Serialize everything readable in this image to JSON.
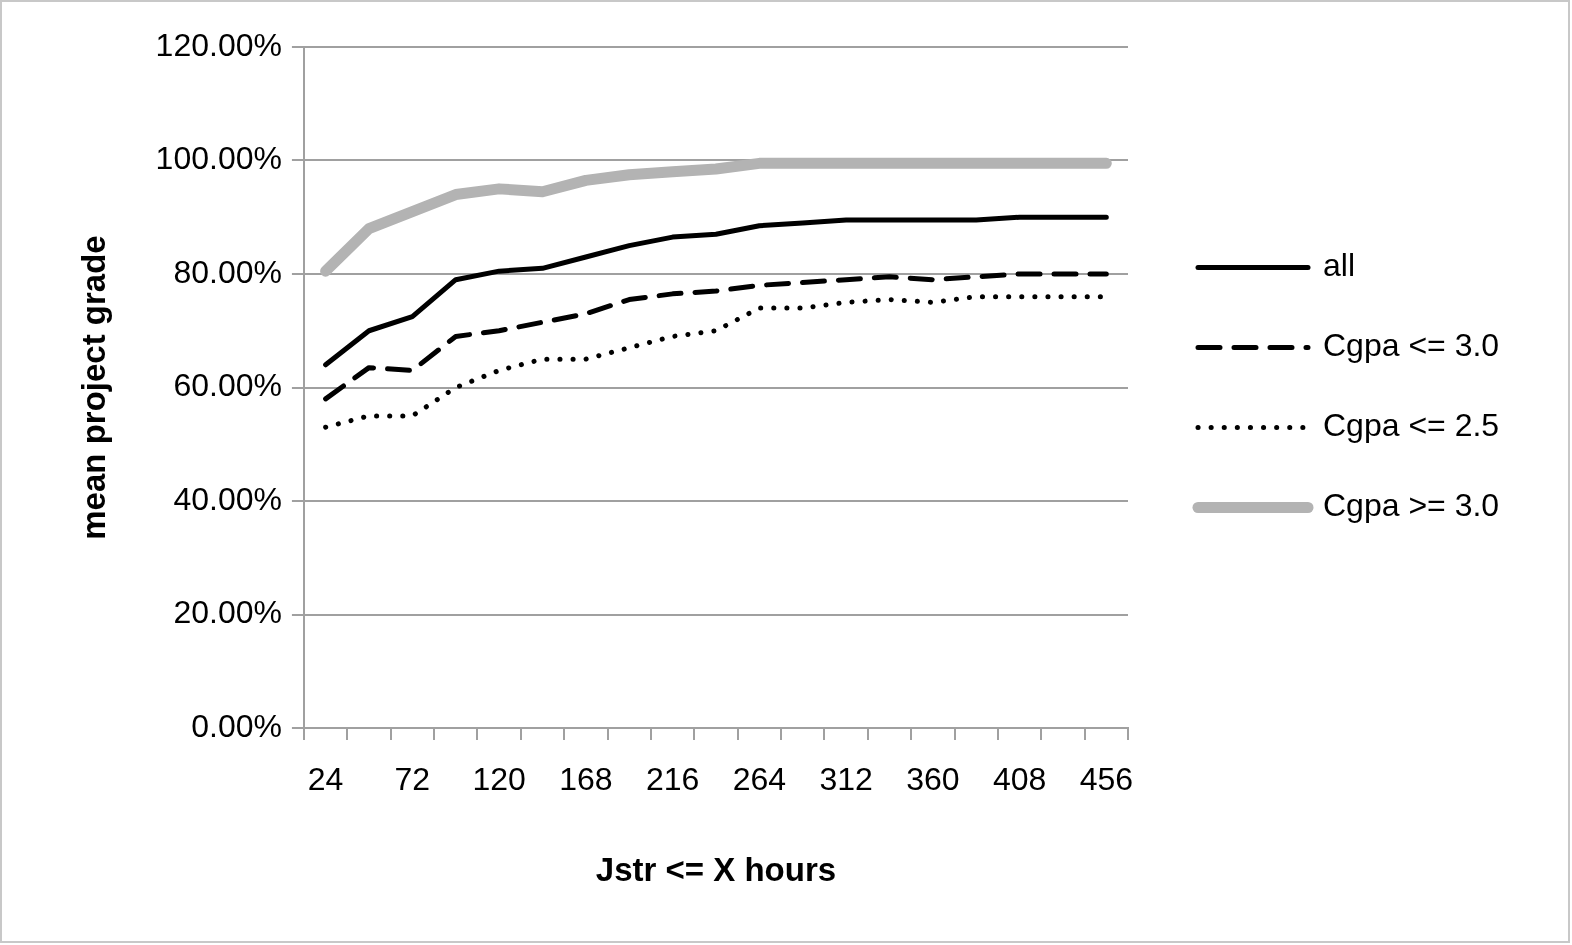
{
  "chart_data": {
    "type": "line",
    "xlabel": "Jstr <= X hours",
    "ylabel": "mean project grade",
    "categories": [
      "24",
      null,
      "72",
      null,
      "120",
      null,
      "168",
      null,
      "216",
      null,
      "264",
      null,
      "312",
      null,
      "360",
      null,
      "408",
      null,
      "456"
    ],
    "series": [
      {
        "name": "all",
        "color": "#000000",
        "line_style": "solid",
        "values": [
          64,
          70,
          72.5,
          79,
          80.5,
          81,
          83,
          85,
          86.5,
          87,
          88.5,
          89,
          89.5,
          89.5,
          89.5,
          89.5,
          90,
          90,
          90
        ]
      },
      {
        "name": "Cgpa <= 3.0",
        "color": "#000000",
        "line_style": "dashed",
        "values": [
          58,
          63.5,
          63,
          69,
          70,
          71.5,
          73,
          75.5,
          76.5,
          77,
          78,
          78.5,
          79,
          79.5,
          79,
          79.5,
          80,
          80,
          80
        ]
      },
      {
        "name": "Cgpa <= 2.5",
        "color": "#000000",
        "line_style": "dotted",
        "values": [
          53,
          55,
          55,
          60,
          63,
          65,
          65,
          67,
          69,
          70,
          74,
          74,
          75,
          75.5,
          75,
          76,
          76,
          76,
          76
        ]
      },
      {
        "name": "Cgpa >= 3.0",
        "color": "#b3b3b3",
        "line_style": "solid",
        "values": [
          80.5,
          88,
          91,
          94,
          95,
          94.5,
          96.5,
          97.5,
          98,
          98.5,
          99.5,
          99.5,
          99.5,
          99.5,
          99.5,
          99.5,
          99.5,
          99.5,
          99.5
        ]
      }
    ],
    "ylim": [
      0,
      120
    ],
    "yticks": [
      {
        "value": 0,
        "label": "0.00%"
      },
      {
        "value": 20,
        "label": "20.00%"
      },
      {
        "value": 40,
        "label": "40.00%"
      },
      {
        "value": 60,
        "label": "60.00%"
      },
      {
        "value": 80,
        "label": "80.00%"
      },
      {
        "value": 100,
        "label": "100.00%"
      },
      {
        "value": 120,
        "label": "120.00%"
      }
    ],
    "grid": "y",
    "legend": "right",
    "marker": "none"
  }
}
